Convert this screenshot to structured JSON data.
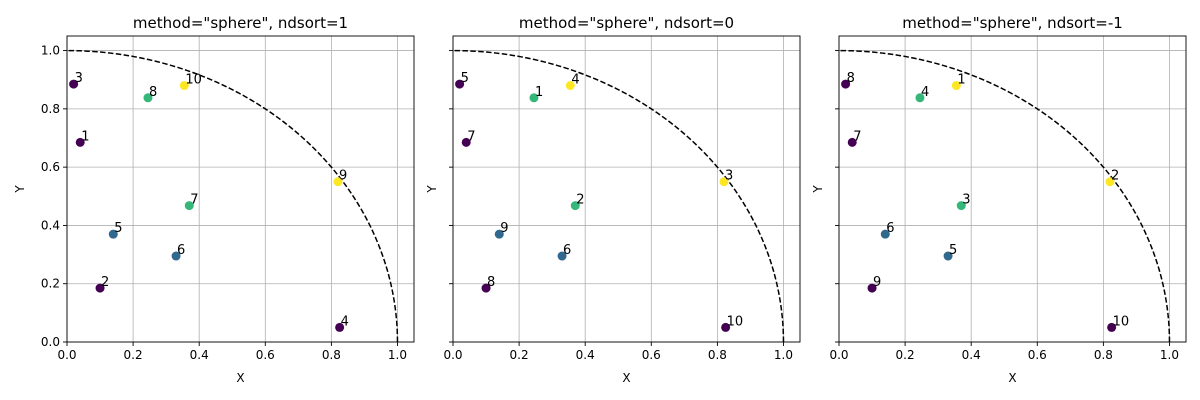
{
  "colors": {
    "rank_1": "#440154",
    "rank_2": "#31688e",
    "rank_3": "#35b779",
    "rank_4": "#fde725",
    "grid": "#b0b0b0",
    "frontier": "#000000"
  },
  "chart_data": [
    {
      "type": "scatter",
      "title": "method=\"sphere\", ndsort=1",
      "xlabel": "X",
      "ylabel": "Y",
      "xlim": [
        0,
        1.05
      ],
      "ylim": [
        0,
        1.05
      ],
      "xticks": [
        "0.0",
        "0.2",
        "0.4",
        "0.6",
        "0.8",
        "1.0"
      ],
      "yticks": [
        "0.0",
        "0.2",
        "0.4",
        "0.6",
        "0.8",
        "1.0"
      ],
      "show_ytick_labels": true,
      "grid": true,
      "reference_curve": "unit quarter circle, dashed",
      "points": [
        {
          "x": 0.02,
          "y": 0.885,
          "label": "3",
          "rank": 1
        },
        {
          "x": 0.04,
          "y": 0.685,
          "label": "1",
          "rank": 1
        },
        {
          "x": 0.1,
          "y": 0.185,
          "label": "2",
          "rank": 1
        },
        {
          "x": 0.14,
          "y": 0.37,
          "label": "5",
          "rank": 2
        },
        {
          "x": 0.245,
          "y": 0.838,
          "label": "8",
          "rank": 3
        },
        {
          "x": 0.33,
          "y": 0.295,
          "label": "6",
          "rank": 2
        },
        {
          "x": 0.355,
          "y": 0.88,
          "label": "10",
          "rank": 4
        },
        {
          "x": 0.37,
          "y": 0.468,
          "label": "7",
          "rank": 3
        },
        {
          "x": 0.82,
          "y": 0.55,
          "label": "9",
          "rank": 4
        },
        {
          "x": 0.825,
          "y": 0.05,
          "label": "4",
          "rank": 1
        }
      ]
    },
    {
      "type": "scatter",
      "title": "method=\"sphere\", ndsort=0",
      "xlabel": "X",
      "ylabel": "Y",
      "xlim": [
        0,
        1.05
      ],
      "ylim": [
        0,
        1.05
      ],
      "xticks": [
        "0.0",
        "0.2",
        "0.4",
        "0.6",
        "0.8",
        "1.0"
      ],
      "yticks": [
        "0.0",
        "0.2",
        "0.4",
        "0.6",
        "0.8",
        "1.0"
      ],
      "show_ytick_labels": false,
      "grid": true,
      "reference_curve": "unit quarter circle, dashed",
      "points": [
        {
          "x": 0.02,
          "y": 0.885,
          "label": "5",
          "rank": 1
        },
        {
          "x": 0.04,
          "y": 0.685,
          "label": "7",
          "rank": 1
        },
        {
          "x": 0.1,
          "y": 0.185,
          "label": "8",
          "rank": 1
        },
        {
          "x": 0.14,
          "y": 0.37,
          "label": "9",
          "rank": 2
        },
        {
          "x": 0.245,
          "y": 0.838,
          "label": "1",
          "rank": 3
        },
        {
          "x": 0.33,
          "y": 0.295,
          "label": "6",
          "rank": 2
        },
        {
          "x": 0.355,
          "y": 0.88,
          "label": "4",
          "rank": 4
        },
        {
          "x": 0.37,
          "y": 0.468,
          "label": "2",
          "rank": 3
        },
        {
          "x": 0.82,
          "y": 0.55,
          "label": "3",
          "rank": 4
        },
        {
          "x": 0.825,
          "y": 0.05,
          "label": "10",
          "rank": 1
        }
      ]
    },
    {
      "type": "scatter",
      "title": "method=\"sphere\", ndsort=-1",
      "xlabel": "X",
      "ylabel": "Y",
      "xlim": [
        0,
        1.05
      ],
      "ylim": [
        0,
        1.05
      ],
      "xticks": [
        "0.0",
        "0.2",
        "0.4",
        "0.6",
        "0.8",
        "1.0"
      ],
      "yticks": [
        "0.0",
        "0.2",
        "0.4",
        "0.6",
        "0.8",
        "1.0"
      ],
      "show_ytick_labels": false,
      "grid": true,
      "reference_curve": "unit quarter circle, dashed",
      "points": [
        {
          "x": 0.02,
          "y": 0.885,
          "label": "8",
          "rank": 1
        },
        {
          "x": 0.04,
          "y": 0.685,
          "label": "7",
          "rank": 1
        },
        {
          "x": 0.1,
          "y": 0.185,
          "label": "9",
          "rank": 1
        },
        {
          "x": 0.14,
          "y": 0.37,
          "label": "6",
          "rank": 2
        },
        {
          "x": 0.245,
          "y": 0.838,
          "label": "4",
          "rank": 3
        },
        {
          "x": 0.33,
          "y": 0.295,
          "label": "5",
          "rank": 2
        },
        {
          "x": 0.355,
          "y": 0.88,
          "label": "1",
          "rank": 4
        },
        {
          "x": 0.37,
          "y": 0.468,
          "label": "3",
          "rank": 3
        },
        {
          "x": 0.82,
          "y": 0.55,
          "label": "2",
          "rank": 4
        },
        {
          "x": 0.825,
          "y": 0.05,
          "label": "10",
          "rank": 1
        }
      ]
    }
  ]
}
